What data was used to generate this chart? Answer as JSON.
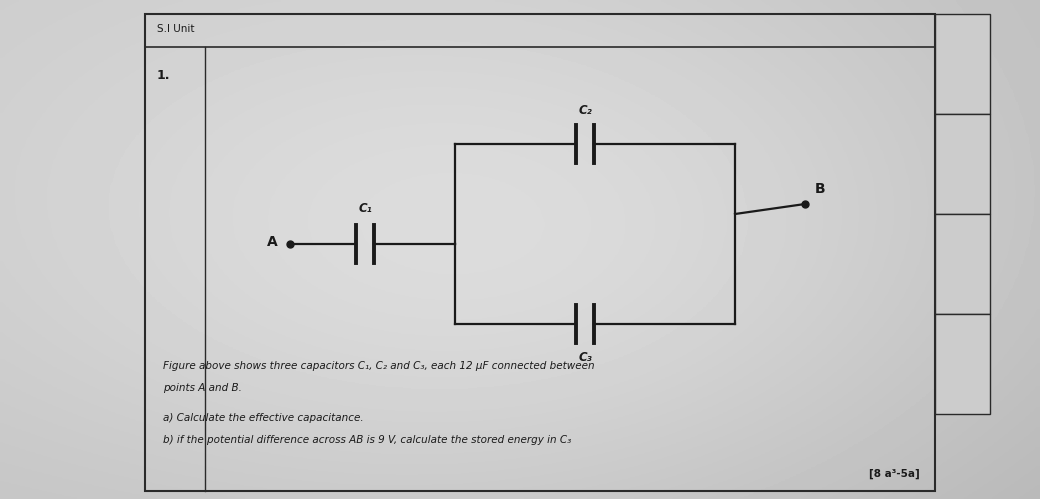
{
  "bg_color_left": "#b8b4b0",
  "bg_color_center": "#d8d4d0",
  "bg_color_right": "#ccc8c4",
  "page_bg": "#b0acaa",
  "border_color": "#333333",
  "line_color": "#1a1a1a",
  "text_color": "#1a1a1a",
  "si_unit_text": "S.I Unit",
  "question_num": "1.",
  "point_A_label": "A",
  "point_B_label": "B",
  "C1_label": "C₁",
  "C2_label": "C₂",
  "C3_label": "C₃",
  "description_line1": "Figure above shows three capacitors C₁, C₂ and C₃, each 12 μF connected between",
  "description_line2": "points A and B.",
  "question_a": "a) Calculate the effective capacitance.",
  "question_b": "b) if the potential difference across AB is 9 V, calculate the stored energy in C₃",
  "marks": "[8 a³-5a]",
  "figsize": [
    10.4,
    4.99
  ],
  "dpi": 100
}
